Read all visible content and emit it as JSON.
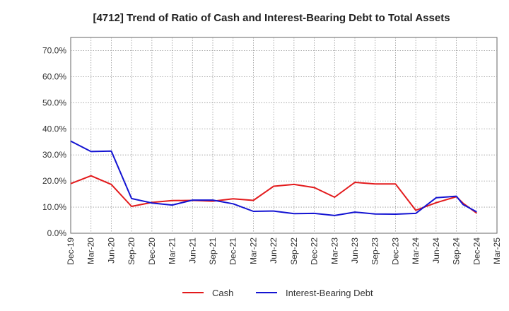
{
  "chart_data": {
    "type": "line",
    "title": "[4712]  Trend of Ratio of Cash and Interest-Bearing Debt to Total Assets",
    "xlabel": "",
    "ylabel": "",
    "ylim": [
      0,
      75
    ],
    "y_ticks": [
      "0.0%",
      "10.0%",
      "20.0%",
      "30.0%",
      "40.0%",
      "50.0%",
      "60.0%",
      "70.0%"
    ],
    "y_tick_values": [
      0,
      10,
      20,
      30,
      40,
      50,
      60,
      70
    ],
    "x_tick_labels": [
      "Dec-19",
      "Mar-20",
      "Jun-20",
      "Sep-20",
      "Dec-20",
      "Mar-21",
      "Jun-21",
      "Sep-21",
      "Dec-21",
      "Mar-22",
      "Jun-22",
      "Sep-22",
      "Dec-22",
      "Mar-23",
      "Jun-23",
      "Sep-23",
      "Dec-23",
      "Mar-24",
      "Jun-24",
      "Sep-24",
      "Dec-24",
      "Mar-25"
    ],
    "x": [
      "Dec-19",
      "Mar-20",
      "Jun-20",
      "Sep-20",
      "Dec-20",
      "Mar-21",
      "Jun-21",
      "Sep-21",
      "Dec-21",
      "Mar-22",
      "Jun-22",
      "Sep-22",
      "Dec-22",
      "Mar-23",
      "Jun-23",
      "Sep-23",
      "Dec-23",
      "Mar-24",
      "Jun-24",
      "Sep-24",
      "Oct-24",
      "Dec-24"
    ],
    "x_index": [
      0,
      1,
      2,
      3,
      4,
      5,
      6,
      7,
      8,
      9,
      10,
      11,
      12,
      13,
      14,
      15,
      16,
      17,
      18,
      19,
      19.33,
      20
    ],
    "grid": true,
    "legend_position": "bottom",
    "series": [
      {
        "name": "Cash",
        "color": "#e31a1c",
        "values": [
          19.0,
          22.0,
          18.7,
          10.3,
          11.8,
          12.5,
          12.6,
          12.3,
          13.2,
          12.6,
          18.0,
          18.7,
          17.5,
          13.8,
          19.5,
          18.9,
          18.9,
          8.8,
          11.7,
          14.0,
          11.5,
          7.7
        ]
      },
      {
        "name": "Interest-Bearing Debt",
        "color": "#1414d2",
        "values": [
          35.3,
          31.3,
          31.5,
          13.3,
          11.6,
          10.8,
          12.7,
          12.7,
          11.3,
          8.4,
          8.5,
          7.5,
          7.6,
          6.8,
          8.1,
          7.4,
          7.3,
          7.6,
          13.6,
          14.2,
          11.0,
          8.2
        ]
      }
    ]
  }
}
